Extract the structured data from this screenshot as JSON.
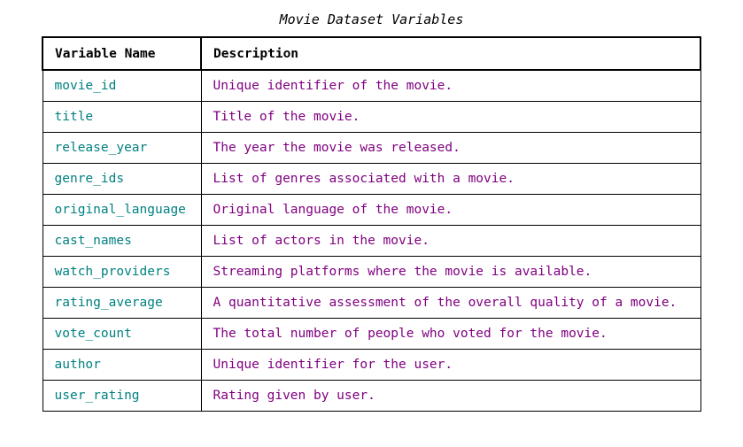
{
  "title": "Movie Dataset Variables",
  "columns": {
    "name": "Variable Name",
    "description": "Description"
  },
  "colors": {
    "name_text": "#008080",
    "description_text": "#800080",
    "border": "#000000"
  },
  "rows": [
    {
      "name": "movie_id",
      "description": "Unique identifier of the movie."
    },
    {
      "name": "title",
      "description": "Title of the movie."
    },
    {
      "name": "release_year",
      "description": "The year the movie was released."
    },
    {
      "name": "genre_ids",
      "description": "List of genres associated with a movie."
    },
    {
      "name": "original_language",
      "description": "Original language of the movie."
    },
    {
      "name": "cast_names",
      "description": "List of actors in the movie."
    },
    {
      "name": "watch_providers",
      "description": "Streaming platforms where the movie is available."
    },
    {
      "name": "rating_average",
      "description": "A quantitative assessment of the overall quality of a movie."
    },
    {
      "name": "vote_count",
      "description": "The total number of people who voted for the movie."
    },
    {
      "name": "author",
      "description": "Unique identifier for the user."
    },
    {
      "name": "user_rating",
      "description": "Rating given by user."
    }
  ]
}
